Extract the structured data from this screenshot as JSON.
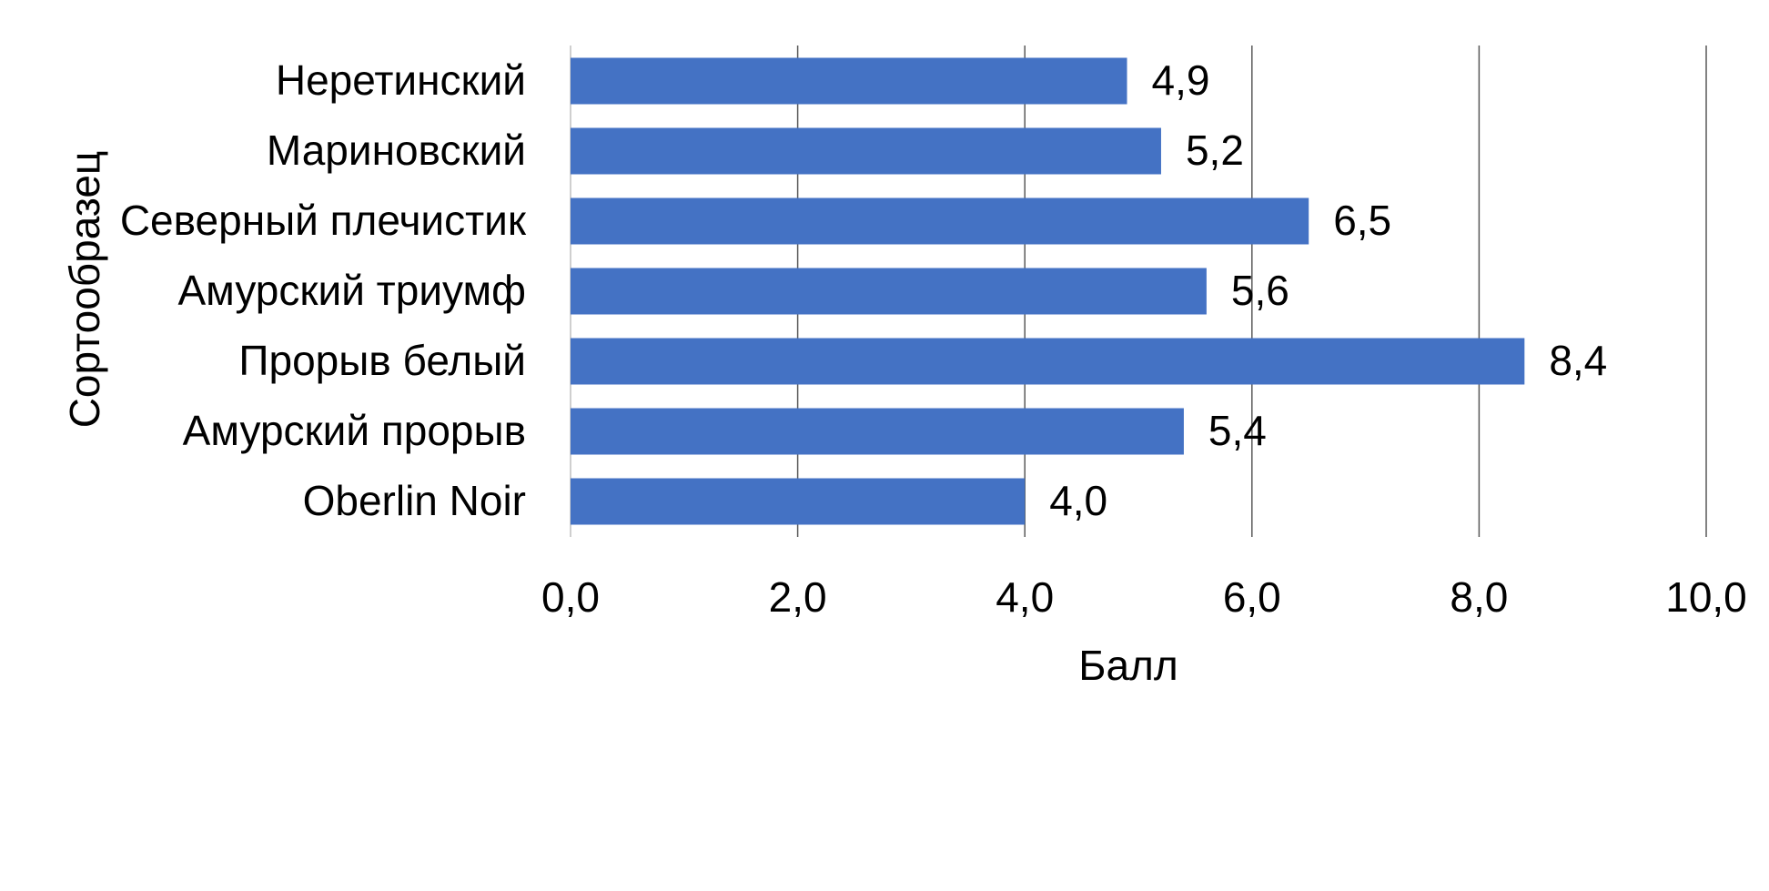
{
  "chart_data": {
    "type": "bar",
    "orientation": "horizontal",
    "categories": [
      "Неретинский",
      "Мариновский",
      "Северный плечистик",
      "Амурский триумф",
      "Прорыв белый",
      "Амурский прорыв",
      "Oberlin Noir"
    ],
    "values": [
      4.9,
      5.2,
      6.5,
      5.6,
      8.4,
      5.4,
      4.0
    ],
    "data_labels": [
      "4,9",
      "5,2",
      "6,5",
      "5,6",
      "8,4",
      "5,4",
      "4,0"
    ],
    "xlabel": "Балл",
    "ylabel": "Сортообразец",
    "xlim": [
      0,
      10
    ],
    "ticks": [
      0,
      2,
      4,
      6,
      8,
      10
    ],
    "tick_labels": [
      "0,0",
      "2,0",
      "4,0",
      "6,0",
      "8,0",
      "10,0"
    ],
    "grid": true,
    "legend": "none",
    "bar_color": "#4472C4"
  }
}
